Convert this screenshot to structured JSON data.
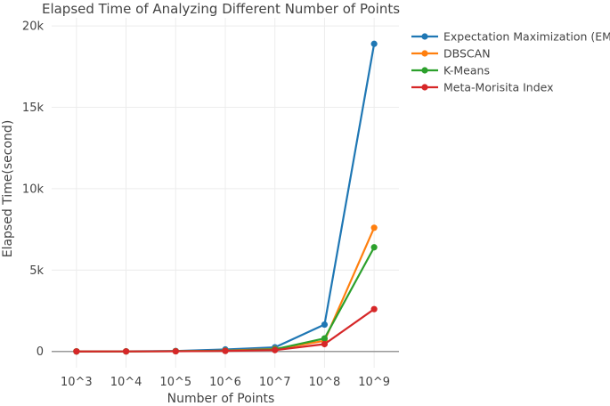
{
  "chart_data": {
    "type": "line",
    "title": "Elapsed Time of Analyzing Different Number of Points",
    "xlabel": "Number of Points",
    "ylabel": "Elapsed Time(second)",
    "categories": [
      "10^3",
      "10^4",
      "10^5",
      "10^6",
      "10^7",
      "10^8",
      "10^9"
    ],
    "ylim": [
      -1000,
      20500
    ],
    "yticks": [
      0,
      5000,
      10000,
      15000,
      20000
    ],
    "ytick_labels": [
      "0",
      "5k",
      "10k",
      "15k",
      "20k"
    ],
    "grid": true,
    "legend_position": "top-right",
    "series": [
      {
        "name": "Expectation Maximization (EM)",
        "color": "#1f77b4",
        "values": [
          0,
          5,
          30,
          120,
          250,
          1650,
          18900
        ]
      },
      {
        "name": "DBSCAN",
        "color": "#ff7f0e",
        "values": [
          0,
          3,
          15,
          50,
          150,
          650,
          7600
        ]
      },
      {
        "name": "K-Means",
        "color": "#2ca02c",
        "values": [
          0,
          3,
          15,
          40,
          130,
          800,
          6400
        ]
      },
      {
        "name": "Meta-Morisita Index",
        "color": "#d62728",
        "values": [
          0,
          2,
          10,
          30,
          80,
          450,
          2600
        ]
      }
    ]
  }
}
